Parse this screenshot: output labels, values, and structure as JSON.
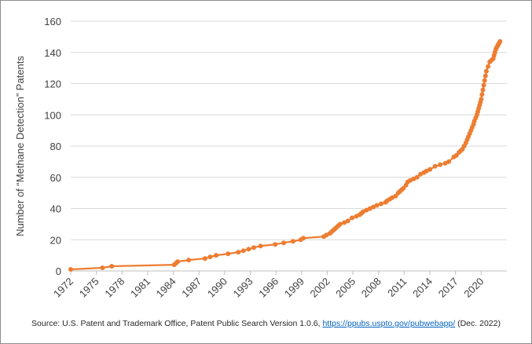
{
  "chart_data": {
    "type": "line",
    "title": "",
    "xlabel": "",
    "ylabel": "Number of “Methane Detection” Patents",
    "ylim": [
      0,
      160
    ],
    "xlim": [
      1972,
      2023
    ],
    "y_ticks": [
      0,
      20,
      40,
      60,
      80,
      100,
      120,
      140,
      160
    ],
    "x_tick_labels": [
      "1972",
      "1975",
      "1978",
      "1981",
      "1984",
      "1987",
      "1990",
      "1993",
      "1996",
      "1999",
      "2002",
      "2005",
      "2008",
      "2011",
      "2014",
      "2017",
      "2020"
    ],
    "grid": true,
    "legend": "none",
    "series": [
      {
        "color": "#ed7d31",
        "x": [
          1972.0,
          1975.7,
          1976.8,
          1984.1,
          1984.3,
          1984.5,
          1985.8,
          1987.7,
          1988.3,
          1989.0,
          1990.4,
          1991.6,
          1992.2,
          1992.8,
          1993.4,
          1994.2,
          1995.9,
          1996.9,
          1998.0,
          1998.9,
          1999.2,
          2001.6,
          2001.9,
          2002.3,
          2002.5,
          2002.7,
          2002.9,
          2003.1,
          2003.3,
          2003.5,
          2004.0,
          2004.4,
          2004.9,
          2005.4,
          2005.8,
          2006.0,
          2006.2,
          2006.6,
          2007.0,
          2007.4,
          2007.8,
          2008.3,
          2008.8,
          2009.0,
          2009.3,
          2009.6,
          2010.0,
          2010.3,
          2010.5,
          2010.7,
          2010.9,
          2011.2,
          2011.4,
          2011.7,
          2012.1,
          2012.5,
          2012.9,
          2013.3,
          2013.6,
          2014.0,
          2014.6,
          2015.2,
          2015.8,
          2016.2,
          2016.8,
          2017.1,
          2017.4,
          2017.6,
          2017.8,
          2018.0,
          2018.2,
          2018.35,
          2018.5,
          2018.65,
          2018.8,
          2018.95,
          2019.1,
          2019.2,
          2019.35,
          2019.5,
          2019.6,
          2019.7,
          2019.8,
          2019.9,
          2020.0,
          2020.1,
          2020.2,
          2020.3,
          2020.4,
          2020.5,
          2020.6,
          2020.8,
          2021.0,
          2021.2,
          2021.4,
          2021.5,
          2021.6,
          2021.7,
          2021.8,
          2021.9,
          2022.0,
          2022.1,
          2022.2
        ],
        "y": [
          1,
          2,
          3,
          4,
          5,
          6,
          7,
          8,
          9,
          10,
          11,
          12,
          13,
          14,
          15,
          16,
          17,
          18,
          19,
          20,
          21,
          22,
          23,
          24,
          25,
          26,
          27,
          28,
          29,
          30,
          31,
          32,
          34,
          35,
          36,
          37,
          38,
          39,
          40,
          41,
          42,
          43,
          44,
          45,
          46,
          47,
          48,
          50,
          51,
          52,
          53,
          55,
          57,
          58,
          59,
          60,
          62,
          63,
          64,
          65,
          67,
          68,
          69,
          70,
          73,
          74,
          76,
          77,
          78,
          80,
          82,
          84,
          86,
          88,
          90,
          92,
          94,
          96,
          98,
          100,
          102,
          104,
          106,
          108,
          110,
          113,
          116,
          119,
          122,
          125,
          128,
          131,
          134,
          135,
          136,
          138,
          140,
          142,
          143,
          144,
          145,
          146,
          147
        ]
      }
    ]
  },
  "source": {
    "text": "Source:  U.S. Patent and Trademark Office, Patent Public Search Version 1.0.6, ",
    "link": "https://ppubs.uspto.gov/pubwebapp/",
    "suffix": " (Dec. 2022)"
  }
}
